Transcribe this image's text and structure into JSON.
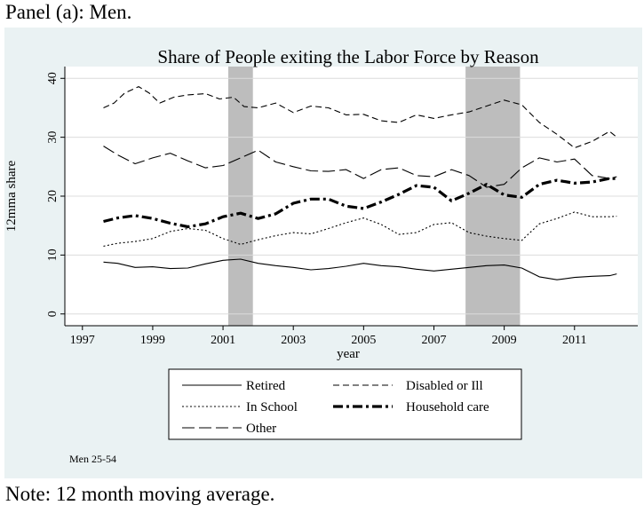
{
  "panel_label": "Panel (a): Men.",
  "note": "Note: 12 month moving average.",
  "chart_data": {
    "type": "line",
    "title": "Share of People exiting the Labor Force by Reason",
    "xlabel": "year",
    "ylabel": "12mma share",
    "xlim": [
      1996.5,
      2012.8
    ],
    "ylim": [
      -2,
      42
    ],
    "x_ticks": [
      1997,
      1999,
      2001,
      2003,
      2005,
      2007,
      2009,
      2011
    ],
    "y_ticks": [
      0,
      10,
      20,
      30,
      40
    ],
    "recessions": [
      {
        "start": 2001.15,
        "end": 2001.85
      },
      {
        "start": 2007.9,
        "end": 2009.45
      }
    ],
    "subset_label": "Men 25-54",
    "series": [
      {
        "name": "Retired",
        "dash": "solid",
        "points": [
          [
            1997.6,
            8.8
          ],
          [
            1998,
            8.6
          ],
          [
            1998.5,
            7.9
          ],
          [
            1999,
            8.0
          ],
          [
            1999.5,
            7.7
          ],
          [
            2000,
            7.8
          ],
          [
            2000.5,
            8.5
          ],
          [
            2001,
            9.1
          ],
          [
            2001.5,
            9.3
          ],
          [
            2002,
            8.6
          ],
          [
            2002.5,
            8.2
          ],
          [
            2003,
            7.9
          ],
          [
            2003.5,
            7.5
          ],
          [
            2004,
            7.7
          ],
          [
            2004.5,
            8.1
          ],
          [
            2005,
            8.6
          ],
          [
            2005.5,
            8.2
          ],
          [
            2006,
            8.0
          ],
          [
            2006.5,
            7.6
          ],
          [
            2007,
            7.3
          ],
          [
            2007.5,
            7.6
          ],
          [
            2008,
            7.9
          ],
          [
            2008.5,
            8.2
          ],
          [
            2009,
            8.3
          ],
          [
            2009.5,
            7.8
          ],
          [
            2010,
            6.3
          ],
          [
            2010.5,
            5.8
          ],
          [
            2011,
            6.2
          ],
          [
            2011.5,
            6.4
          ],
          [
            2012,
            6.5
          ],
          [
            2012.2,
            6.8
          ]
        ]
      },
      {
        "name": "Disabled or Ill",
        "dash": "dashed",
        "points": [
          [
            1997.6,
            35
          ],
          [
            1997.9,
            35.8
          ],
          [
            1998.2,
            37.5
          ],
          [
            1998.6,
            38.6
          ],
          [
            1998.9,
            37.5
          ],
          [
            1999.2,
            35.8
          ],
          [
            1999.6,
            36.8
          ],
          [
            2000,
            37.2
          ],
          [
            2000.5,
            37.4
          ],
          [
            2000.9,
            36.5
          ],
          [
            2001.3,
            36.8
          ],
          [
            2001.6,
            35.2
          ],
          [
            2002,
            35.0
          ],
          [
            2002.5,
            35.8
          ],
          [
            2003,
            34.2
          ],
          [
            2003.5,
            35.3
          ],
          [
            2004,
            35.0
          ],
          [
            2004.5,
            33.8
          ],
          [
            2005,
            33.9
          ],
          [
            2005.5,
            32.8
          ],
          [
            2006,
            32.5
          ],
          [
            2006.5,
            33.8
          ],
          [
            2007,
            33.2
          ],
          [
            2007.5,
            33.8
          ],
          [
            2008,
            34.3
          ],
          [
            2008.5,
            35.3
          ],
          [
            2009,
            36.3
          ],
          [
            2009.5,
            35.5
          ],
          [
            2010,
            32.5
          ],
          [
            2010.5,
            30.5
          ],
          [
            2011,
            28.2
          ],
          [
            2011.5,
            29.3
          ],
          [
            2012,
            31.0
          ],
          [
            2012.2,
            30.0
          ]
        ]
      },
      {
        "name": "In School",
        "dash": "dotted",
        "points": [
          [
            1997.6,
            11.5
          ],
          [
            1998,
            12.0
          ],
          [
            1998.5,
            12.3
          ],
          [
            1999,
            12.8
          ],
          [
            1999.5,
            14.0
          ],
          [
            2000,
            14.5
          ],
          [
            2000.5,
            14.2
          ],
          [
            2001,
            12.8
          ],
          [
            2001.5,
            11.8
          ],
          [
            2002,
            12.6
          ],
          [
            2002.5,
            13.3
          ],
          [
            2003,
            13.8
          ],
          [
            2003.5,
            13.6
          ],
          [
            2004,
            14.5
          ],
          [
            2004.5,
            15.5
          ],
          [
            2005,
            16.3
          ],
          [
            2005.5,
            15.2
          ],
          [
            2006,
            13.5
          ],
          [
            2006.5,
            13.8
          ],
          [
            2007,
            15.2
          ],
          [
            2007.5,
            15.5
          ],
          [
            2008,
            13.8
          ],
          [
            2008.5,
            13.2
          ],
          [
            2009,
            12.8
          ],
          [
            2009.5,
            12.5
          ],
          [
            2010,
            15.3
          ],
          [
            2010.5,
            16.2
          ],
          [
            2011,
            17.3
          ],
          [
            2011.5,
            16.5
          ],
          [
            2012,
            16.5
          ],
          [
            2012.2,
            16.6
          ]
        ]
      },
      {
        "name": "Household care",
        "dash": "dashdot-thick",
        "points": [
          [
            1997.6,
            15.7
          ],
          [
            1998,
            16.3
          ],
          [
            1998.5,
            16.7
          ],
          [
            1999,
            16.2
          ],
          [
            1999.5,
            15.4
          ],
          [
            2000,
            14.8
          ],
          [
            2000.5,
            15.3
          ],
          [
            2001,
            16.5
          ],
          [
            2001.5,
            17.1
          ],
          [
            2002,
            16.2
          ],
          [
            2002.5,
            17.0
          ],
          [
            2003,
            18.8
          ],
          [
            2003.5,
            19.5
          ],
          [
            2004,
            19.5
          ],
          [
            2004.5,
            18.3
          ],
          [
            2005,
            17.9
          ],
          [
            2005.5,
            19.0
          ],
          [
            2006,
            20.3
          ],
          [
            2006.5,
            21.8
          ],
          [
            2007,
            21.5
          ],
          [
            2007.5,
            19.2
          ],
          [
            2008,
            20.5
          ],
          [
            2008.5,
            22.0
          ],
          [
            2009,
            20.2
          ],
          [
            2009.5,
            19.8
          ],
          [
            2010,
            22.0
          ],
          [
            2010.5,
            22.7
          ],
          [
            2011,
            22.2
          ],
          [
            2011.5,
            22.4
          ],
          [
            2012,
            23.0
          ],
          [
            2012.2,
            23.0
          ]
        ]
      },
      {
        "name": "Other",
        "dash": "longdash",
        "points": [
          [
            1997.6,
            28.5
          ],
          [
            1998,
            27.0
          ],
          [
            1998.5,
            25.5
          ],
          [
            1999,
            26.5
          ],
          [
            1999.5,
            27.3
          ],
          [
            2000,
            26.0
          ],
          [
            2000.5,
            24.8
          ],
          [
            2001,
            25.2
          ],
          [
            2001.5,
            26.5
          ],
          [
            2002,
            27.8
          ],
          [
            2002.5,
            25.8
          ],
          [
            2003,
            25.0
          ],
          [
            2003.5,
            24.3
          ],
          [
            2004,
            24.2
          ],
          [
            2004.5,
            24.5
          ],
          [
            2005,
            23.0
          ],
          [
            2005.5,
            24.5
          ],
          [
            2006,
            24.8
          ],
          [
            2006.5,
            23.5
          ],
          [
            2007,
            23.3
          ],
          [
            2007.5,
            24.5
          ],
          [
            2008,
            23.5
          ],
          [
            2008.5,
            21.5
          ],
          [
            2009,
            22.0
          ],
          [
            2009.5,
            24.8
          ],
          [
            2010,
            26.5
          ],
          [
            2010.5,
            25.8
          ],
          [
            2011,
            26.3
          ],
          [
            2011.5,
            23.5
          ],
          [
            2012,
            23.0
          ],
          [
            2012.2,
            23.3
          ]
        ]
      }
    ]
  }
}
